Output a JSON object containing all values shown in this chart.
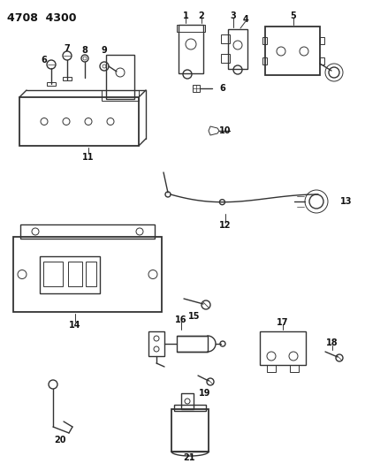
{
  "title": "4708  4300",
  "bg_color": "#ffffff",
  "line_color": "#333333",
  "figsize": [
    4.14,
    5.33
  ],
  "dpi": 100
}
